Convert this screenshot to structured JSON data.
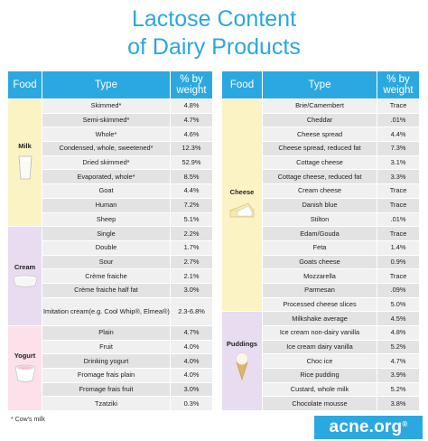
{
  "title_line1": "Lactose Content",
  "title_line2": "of Dairy Products",
  "headers": {
    "food": "Food",
    "type": "Type",
    "weight_line1": "% by",
    "weight_line2": "weight"
  },
  "left_groups": [
    {
      "name": "Milk",
      "items": [
        {
          "type": "Skimmed*",
          "value": "4.8%"
        },
        {
          "type": "Semi-skimmed*",
          "value": "4.7%"
        },
        {
          "type": "Whole*",
          "value": "4.6%"
        },
        {
          "type": "Condensed, whole, sweetened*",
          "value": "12.3%"
        },
        {
          "type": "Dried skimmed*",
          "value": "52.9%"
        },
        {
          "type": "Evaporated, whole*",
          "value": "8.5%"
        },
        {
          "type": "Goat",
          "value": "4.4%"
        },
        {
          "type": "Human",
          "value": "7.2%"
        },
        {
          "type": "Sheep",
          "value": "5.1%"
        }
      ]
    },
    {
      "name": "Cream",
      "items": [
        {
          "type": "Single",
          "value": "2.2%"
        },
        {
          "type": "Double",
          "value": "1.7%"
        },
        {
          "type": "Sour",
          "value": "2.7%"
        },
        {
          "type": "Crème fraiche",
          "value": "2.1%"
        },
        {
          "type": "Crème fraiche half fat",
          "value": "3.0%"
        },
        {
          "type": "Imitation cream",
          "subtype": "(e.g. Cool Whip®, Elmea®)",
          "value": "2.3-6.8%"
        }
      ]
    },
    {
      "name": "Yogurt",
      "items": [
        {
          "type": "Plain",
          "value": "4.7%"
        },
        {
          "type": "Fruit",
          "value": "4.0%"
        },
        {
          "type": "Drinking yogurt",
          "value": "4.0%"
        },
        {
          "type": "Fromage frais plain",
          "value": "4.0%"
        },
        {
          "type": "Fromage frais fruit",
          "value": "3.0%"
        },
        {
          "type": "Tzatziki",
          "value": "0.3%"
        }
      ]
    }
  ],
  "right_groups": [
    {
      "name": "Cheese",
      "items": [
        {
          "type": "Brie/Camembert",
          "value": "Trace"
        },
        {
          "type": "Cheddar",
          "value": ".01%"
        },
        {
          "type": "Cheese spread",
          "value": "4.4%"
        },
        {
          "type": "Cheese spread, reduced fat",
          "value": "7.3%"
        },
        {
          "type": "Cottage cheese",
          "value": "3.1%"
        },
        {
          "type": "Cottage cheese, reduced fat",
          "value": "3.3%"
        },
        {
          "type": "Cream cheese",
          "value": "Trace"
        },
        {
          "type": "Danish blue",
          "value": "Trace"
        },
        {
          "type": "Stilton",
          "value": ".01%"
        },
        {
          "type": "Edam/Gouda",
          "value": "Trace"
        },
        {
          "type": "Feta",
          "value": "1.4%"
        },
        {
          "type": "Goats cheese",
          "value": "0.9%"
        },
        {
          "type": "Mozzarella",
          "value": "Trace"
        },
        {
          "type": "Parmesan",
          "value": ".09%"
        },
        {
          "type": "Processed cheese slices",
          "value": "5.0%"
        }
      ]
    },
    {
      "name": "Puddings",
      "items": [
        {
          "type": "Milkshake average",
          "value": "4.5%"
        },
        {
          "type": "Ice cream non-dairy vanilla",
          "value": "4.8%"
        },
        {
          "type": "Ice cream dairy vanilla",
          "value": "5.2%"
        },
        {
          "type": "Choc ice",
          "value": "4.7%"
        },
        {
          "type": "Rice pudding",
          "value": "3.9%"
        },
        {
          "type": "Custard, whole milk",
          "value": "5.2%"
        },
        {
          "type": "Chocolate mousse",
          "value": "3.8%"
        }
      ]
    }
  ],
  "footnote": "* Cow's milk",
  "brand": "acne.org",
  "brand_mark": "®",
  "colors": {
    "title": "#2aa7df",
    "header_bg": "#2ba8e0",
    "milk_cheese_bg": "#fbf3c4",
    "cream_pudding_bg": "#e8dcf0",
    "yogurt_bg": "#fce0ea",
    "row_dark": "#e3e3e3",
    "row_light": "#f0f0f0"
  },
  "icons": {
    "Milk": "milk-glass-icon",
    "Cream": "cream-tub-icon",
    "Yogurt": "yogurt-cup-icon",
    "Cheese": "cheese-wedge-icon",
    "Puddings": "ice-cream-cone-icon"
  }
}
